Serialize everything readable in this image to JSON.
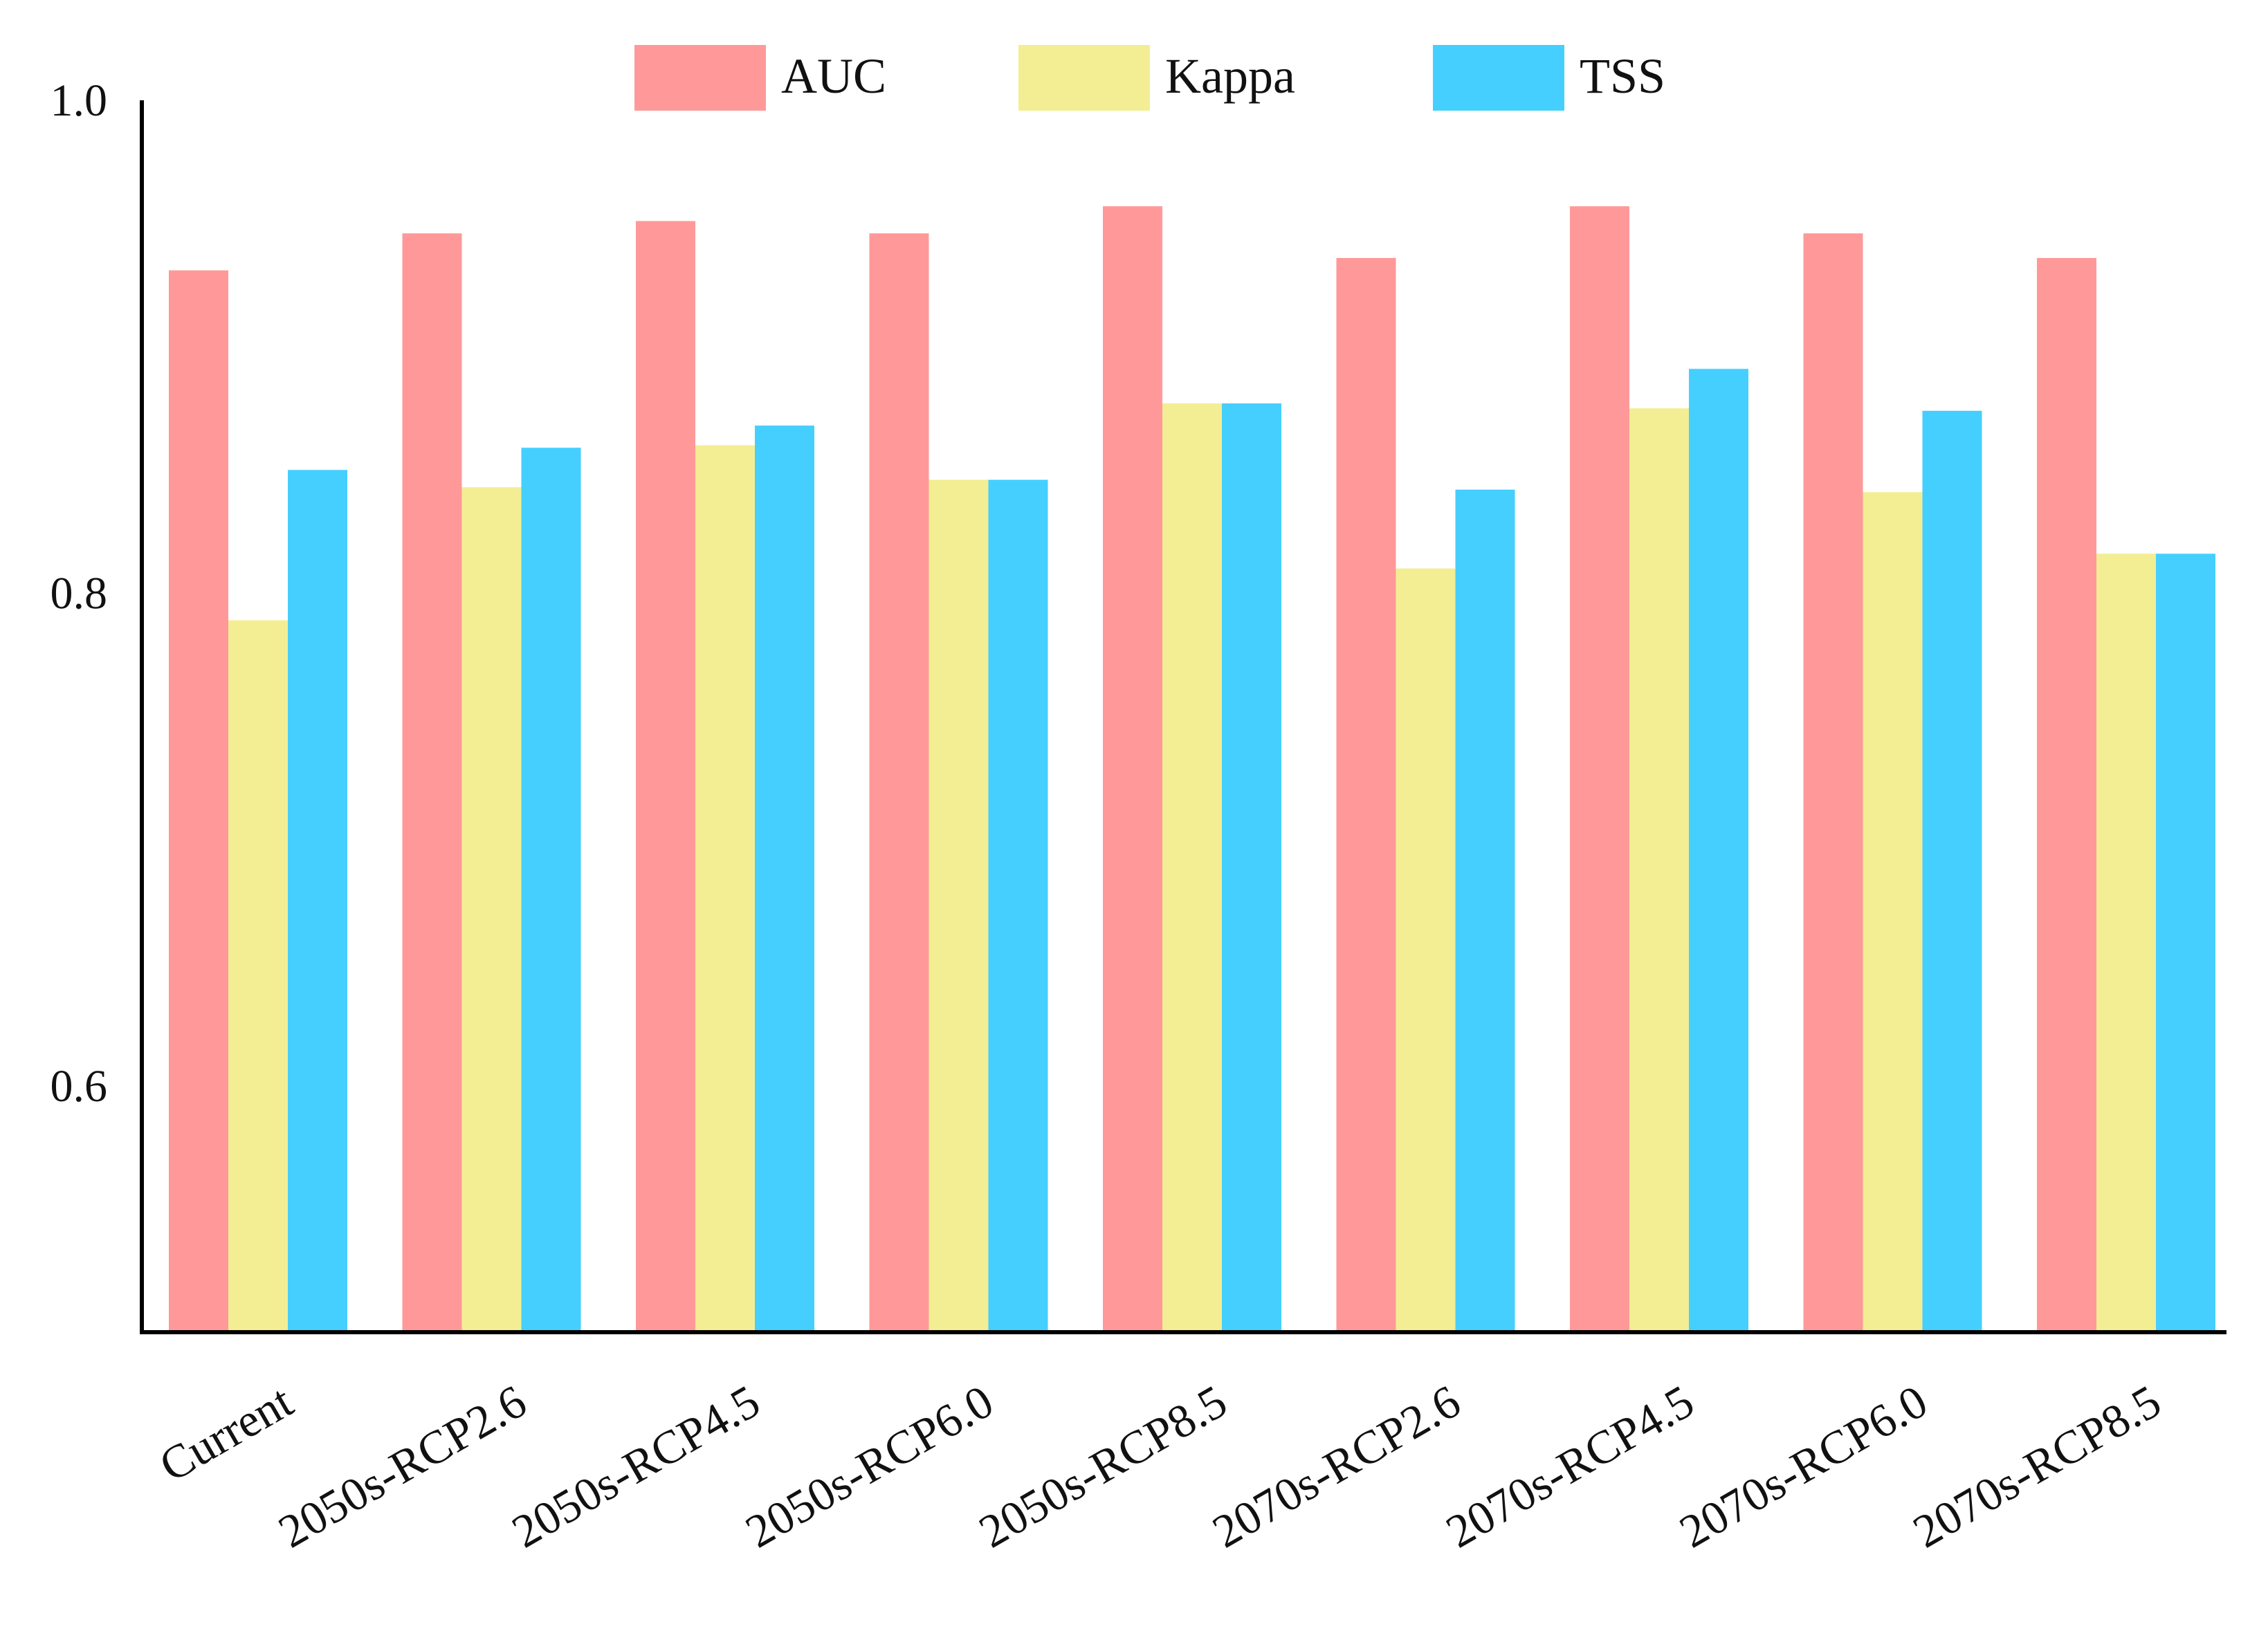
{
  "chart_data": {
    "type": "bar",
    "categories": [
      "Current",
      "2050s-RCP2.6",
      "2050s-RCP4.5",
      "2050s-RCP6.0",
      "2050s-RCP8.5",
      "2070s-RCP2.6",
      "2070s-RCP4.5",
      "2070s-RCP6.0",
      "2070s-RCP8.5"
    ],
    "series": [
      {
        "name": "AUC",
        "color": "#FF9999",
        "values": [
          0.931,
          0.946,
          0.951,
          0.946,
          0.957,
          0.936,
          0.957,
          0.946,
          0.936
        ]
      },
      {
        "name": "Kappa",
        "color": "#F3EE94",
        "values": [
          0.789,
          0.843,
          0.86,
          0.846,
          0.877,
          0.81,
          0.875,
          0.841,
          0.816
        ]
      },
      {
        "name": "TSS",
        "color": "#45CFFF",
        "values": [
          0.85,
          0.859,
          0.868,
          0.846,
          0.877,
          0.842,
          0.891,
          0.874,
          0.816
        ]
      }
    ],
    "yticks": [
      "1.0",
      "0.8",
      "0.6"
    ],
    "ylim": [
      0.5,
      1.0
    ],
    "title": "",
    "xlabel": "",
    "ylabel": "",
    "legend_position": "top",
    "grid": false
  }
}
